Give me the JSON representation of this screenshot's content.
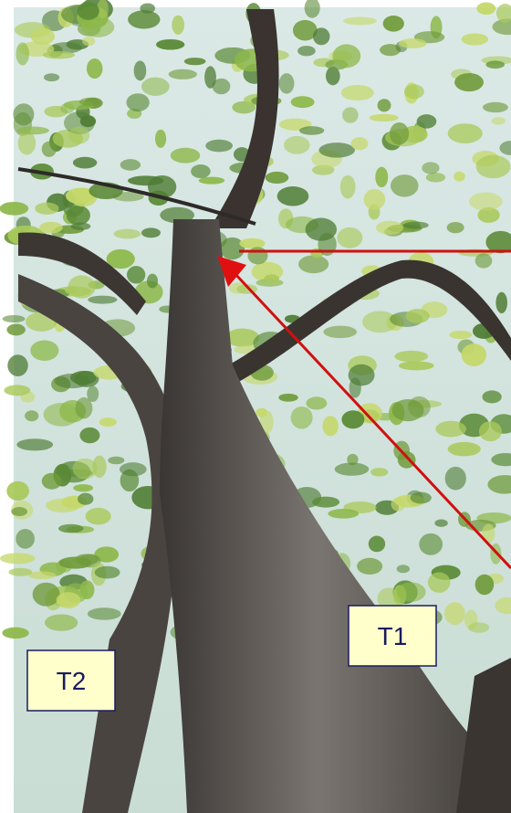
{
  "labels": [
    {
      "text": "T1"
    },
    {
      "text": "T2"
    }
  ]
}
